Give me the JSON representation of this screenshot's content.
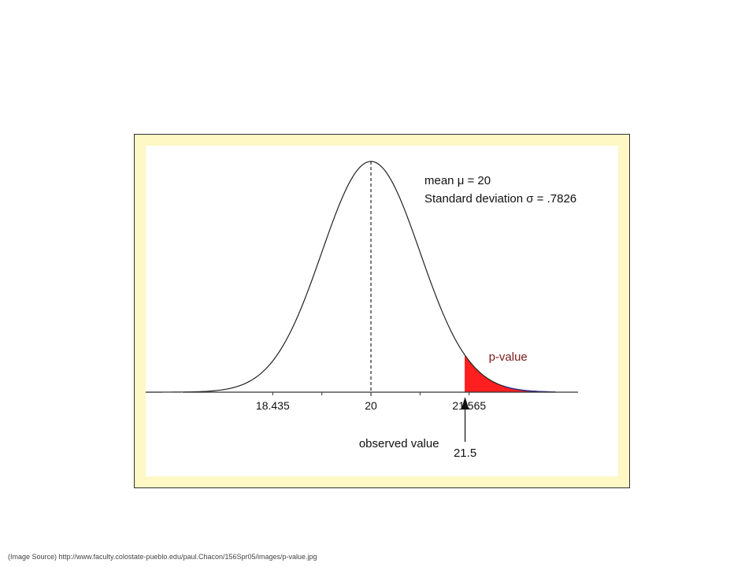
{
  "chart_data": {
    "type": "area",
    "distribution": "normal",
    "mean": 20,
    "sd": 0.7826,
    "stats_lines": [
      "mean μ = 20",
      "Standard deviation σ = .7826"
    ],
    "ticks": [
      {
        "value": 18.435,
        "label": "18.435"
      },
      {
        "value": 20,
        "label": "20"
      },
      {
        "value": 21.565,
        "label": "21.565"
      }
    ],
    "minor_ticks": [
      19.2175,
      20.7825
    ],
    "shaded_from": 21.5,
    "shaded_label": "p-value",
    "observed": {
      "value": 21.5,
      "label": "21.5",
      "caption": "observed value"
    },
    "xlim": [
      17.0,
      23.3
    ],
    "colors": {
      "curve": "#222222",
      "shade": "#ff1f1f",
      "axis": "#333333",
      "frame": "#fdf8c4",
      "tail": "#2a2a8a"
    }
  },
  "footer": {
    "source": "(Image Source) http://www.faculty.colostate-pueblo.edu/paul.Chacon/156Spr05/images/p-value.jpg"
  }
}
